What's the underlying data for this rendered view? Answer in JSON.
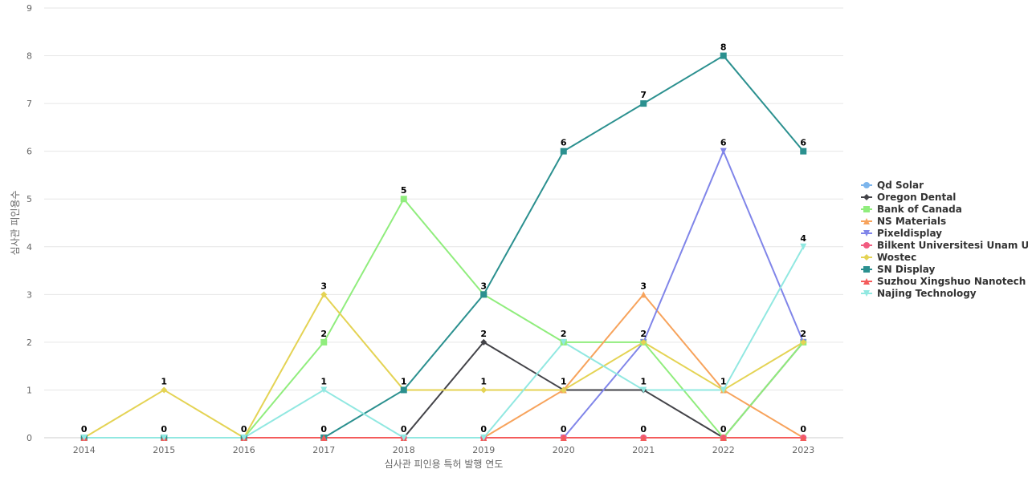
{
  "chart_data": {
    "type": "line",
    "xlabel": "심사관 피인용 특허 발행 연도",
    "ylabel": "심사관 피인용수",
    "x": [
      "2014",
      "2015",
      "2016",
      "2017",
      "2018",
      "2019",
      "2020",
      "2021",
      "2022",
      "2023"
    ],
    "ylim": [
      0,
      9
    ],
    "yticks": [
      0,
      1,
      2,
      3,
      4,
      5,
      6,
      7,
      8,
      9
    ],
    "grid": true,
    "legend_position": "right",
    "series": [
      {
        "name": "Qd Solar",
        "color": "#7cb5ec",
        "marker": "circle",
        "values": [
          0,
          0,
          0,
          0,
          0,
          0,
          0,
          0,
          0,
          0
        ]
      },
      {
        "name": "Oregon Dental",
        "color": "#434348",
        "marker": "diamond",
        "values": [
          0,
          0,
          0,
          0,
          0,
          2,
          1,
          1,
          0,
          2
        ]
      },
      {
        "name": "Bank of Canada",
        "color": "#90ed7d",
        "marker": "square",
        "values": [
          0,
          0,
          0,
          2,
          5,
          3,
          2,
          2,
          0,
          2
        ]
      },
      {
        "name": "NS Materials",
        "color": "#f7a35c",
        "marker": "triangle",
        "values": [
          0,
          0,
          0,
          0,
          0,
          0,
          1,
          3,
          1,
          0
        ]
      },
      {
        "name": "Pixeldisplay",
        "color": "#8085e9",
        "marker": "triangle-down",
        "values": [
          0,
          0,
          0,
          0,
          0,
          0,
          0,
          2,
          6,
          2
        ]
      },
      {
        "name": "Bilkent Universitesi Unam U...",
        "color": "#f15c80",
        "marker": "circle",
        "values": [
          0,
          0,
          0,
          0,
          0,
          0,
          0,
          0,
          0,
          0
        ]
      },
      {
        "name": "Wostec",
        "color": "#e4d354",
        "marker": "diamond",
        "values": [
          0,
          1,
          0,
          3,
          1,
          1,
          1,
          2,
          1,
          2
        ]
      },
      {
        "name": "SN Display",
        "color": "#2b908f",
        "marker": "square",
        "values": [
          0,
          0,
          0,
          0,
          1,
          3,
          6,
          7,
          8,
          6
        ]
      },
      {
        "name": "Suzhou Xingshuo Nanotech",
        "color": "#f45b5b",
        "marker": "triangle",
        "values": [
          0,
          0,
          0,
          0,
          0,
          0,
          0,
          0,
          0,
          0
        ]
      },
      {
        "name": "Najing Technology",
        "color": "#91e8e1",
        "marker": "triangle-down",
        "values": [
          0,
          0,
          0,
          1,
          0,
          0,
          2,
          1,
          1,
          4
        ]
      }
    ],
    "data_labels": [
      {
        "x": "2014",
        "value": 0
      },
      {
        "x": "2015",
        "value": 1
      },
      {
        "x": "2015",
        "value": 0
      },
      {
        "x": "2016",
        "value": 0
      },
      {
        "x": "2017",
        "value": 3
      },
      {
        "x": "2017",
        "value": 2
      },
      {
        "x": "2017",
        "value": 1
      },
      {
        "x": "2017",
        "value": 0
      },
      {
        "x": "2018",
        "value": 5
      },
      {
        "x": "2018",
        "value": 1
      },
      {
        "x": "2018",
        "value": 0
      },
      {
        "x": "2019",
        "value": 3
      },
      {
        "x": "2019",
        "value": 2
      },
      {
        "x": "2019",
        "value": 1
      },
      {
        "x": "2019",
        "value": 0
      },
      {
        "x": "2020",
        "value": 6
      },
      {
        "x": "2020",
        "value": 2
      },
      {
        "x": "2020",
        "value": 1
      },
      {
        "x": "2020",
        "value": 0
      },
      {
        "x": "2021",
        "value": 7
      },
      {
        "x": "2021",
        "value": 3
      },
      {
        "x": "2021",
        "value": 2
      },
      {
        "x": "2021",
        "value": 1
      },
      {
        "x": "2021",
        "value": 0
      },
      {
        "x": "2022",
        "value": 8
      },
      {
        "x": "2022",
        "value": 6
      },
      {
        "x": "2022",
        "value": 1
      },
      {
        "x": "2022",
        "value": 0
      },
      {
        "x": "2023",
        "value": 6
      },
      {
        "x": "2023",
        "value": 4
      },
      {
        "x": "2023",
        "value": 2
      },
      {
        "x": "2023",
        "value": 0
      }
    ]
  }
}
